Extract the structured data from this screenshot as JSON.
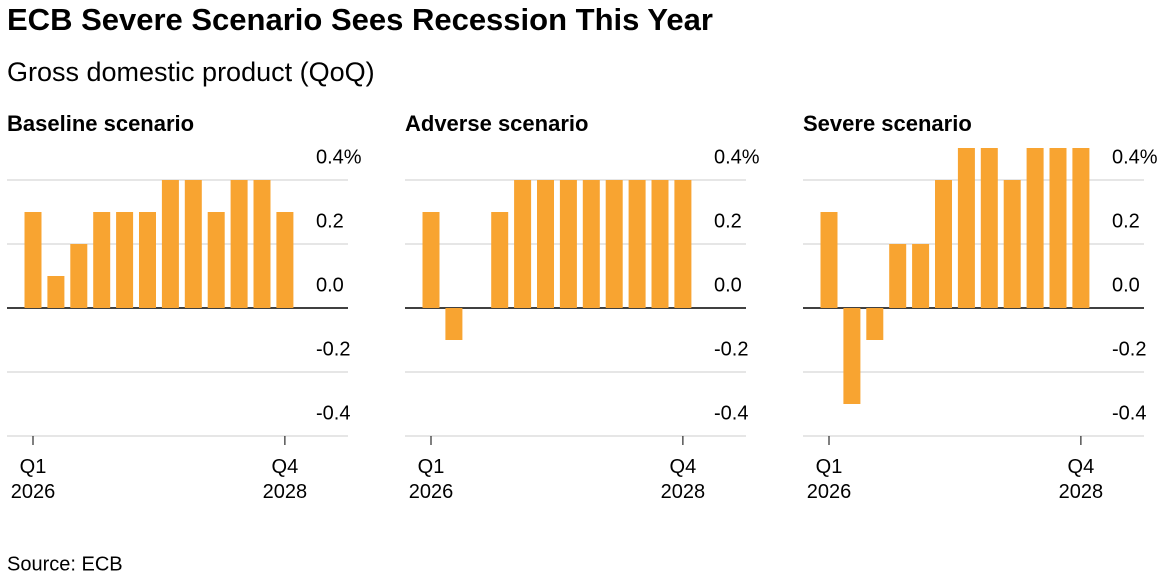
{
  "title": "ECB Severe Scenario Sees Recession This Year",
  "subtitle": "Gross domestic product (QoQ)",
  "source": "Source: ECB",
  "chart_data": [
    {
      "type": "bar",
      "title": "Baseline scenario",
      "color": "#f8a431",
      "categories": [
        "Q1\n2026",
        null,
        null,
        null,
        null,
        null,
        null,
        null,
        null,
        null,
        null,
        "Q4\n2028"
      ],
      "values": [
        0.3,
        0.1,
        0.2,
        0.3,
        0.3,
        0.3,
        0.4,
        0.4,
        0.3,
        0.4,
        0.4,
        0.3
      ],
      "ylim": [
        -0.4,
        0.5
      ],
      "yticks": [
        {
          "value": 0.4,
          "label": "0.4%"
        },
        0.2,
        {
          "value": 0,
          "label": "0.0"
        },
        -0.2,
        -0.4
      ],
      "grid": true
    },
    {
      "type": "bar",
      "title": "Adverse scenario",
      "color": "#f8a431",
      "categories": [
        "Q1\n2026",
        null,
        null,
        null,
        null,
        null,
        null,
        null,
        null,
        null,
        null,
        "Q4\n2028"
      ],
      "values": [
        0.3,
        -0.1,
        0,
        0.3,
        0.4,
        0.4,
        0.4,
        0.4,
        0.4,
        0.4,
        0.4,
        0.4
      ],
      "ylim": [
        -0.4,
        0.5
      ],
      "yticks": [
        {
          "value": 0.4,
          "label": "0.4%"
        },
        0.2,
        {
          "value": 0,
          "label": "0.0"
        },
        -0.2,
        -0.4
      ],
      "grid": true
    },
    {
      "type": "bar",
      "title": "Severe scenario",
      "color": "#f8a431",
      "categories": [
        "Q1\n2026",
        null,
        null,
        null,
        null,
        null,
        null,
        null,
        null,
        null,
        null,
        "Q4\n2028"
      ],
      "values": [
        0.3,
        -0.3,
        -0.1,
        0.2,
        0.2,
        0.4,
        0.5,
        0.5,
        0.4,
        0.5,
        0.5,
        0.5
      ],
      "ylim": [
        -0.4,
        0.5
      ],
      "yticks": [
        {
          "value": 0.4,
          "label": "0.4%"
        },
        0.2,
        {
          "value": 0,
          "label": "0.0"
        },
        -0.2,
        -0.4
      ],
      "grid": true
    }
  ]
}
